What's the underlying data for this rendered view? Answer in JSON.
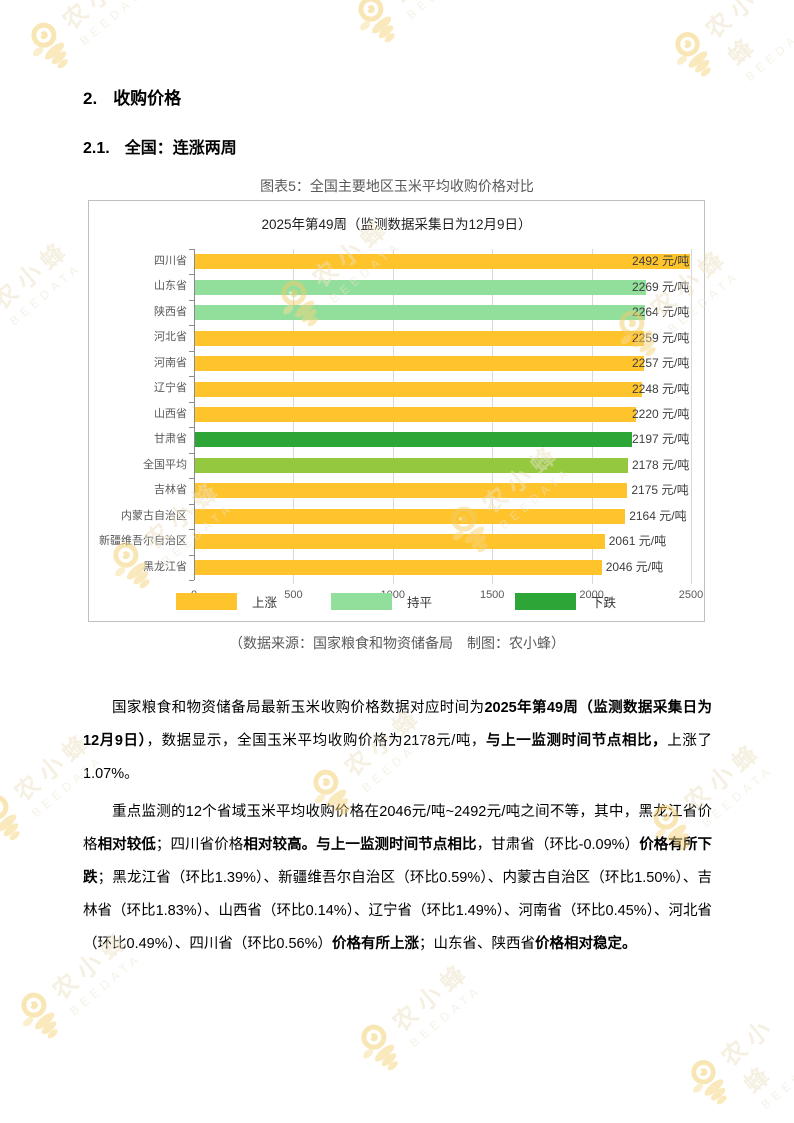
{
  "headings": {
    "h1_number": "2.",
    "h1_title": "收购价格",
    "h2_number": "2.1.",
    "h2_title": "全国：连涨两周"
  },
  "figure": {
    "label": "图表5：全国主要地区玉米平均收购价格对比",
    "caption": "（数据来源：国家粮食和物资储备局　制图：农小蜂）"
  },
  "watermark": {
    "brand_cn": "农小蜂",
    "brand_en": "BEEDATA"
  },
  "chart_data": {
    "type": "bar",
    "orientation": "horizontal",
    "title": "2025年第49周（监测数据采集日为12月9日）",
    "value_unit": "元/吨",
    "xlim": [
      0,
      2500
    ],
    "x_ticks": [
      "0",
      "500",
      "1000",
      "1500",
      "2000",
      "2500"
    ],
    "grid": true,
    "legend_position": "bottom",
    "categories": [
      "四川省",
      "山东省",
      "陕西省",
      "河北省",
      "河南省",
      "辽宁省",
      "山西省",
      "甘肃省",
      "全国平均",
      "吉林省",
      "内蒙古自治区",
      "新疆维吾尔自治区",
      "黑龙江省"
    ],
    "values": [
      2492,
      2269,
      2264,
      2259,
      2257,
      2248,
      2220,
      2197,
      2178,
      2175,
      2164,
      2061,
      2046
    ],
    "statuses": [
      "up",
      "flat",
      "flat",
      "up",
      "up",
      "up",
      "up",
      "down",
      "average",
      "up",
      "up",
      "up",
      "up"
    ],
    "status_colors": {
      "up": "#FFC32C",
      "flat": "#92DE9B",
      "down": "#2DA637",
      "average": "#93C83F"
    },
    "legend": [
      {
        "label": "上涨",
        "status": "up"
      },
      {
        "label": "持平",
        "status": "flat"
      },
      {
        "label": "下跌",
        "status": "down"
      }
    ]
  },
  "paragraphs": [
    {
      "segments": [
        {
          "text": "国家粮食和物资储备局最新玉米收购价格数据对应时间为",
          "bold": false
        },
        {
          "text": "2025年第49周（监测数据采集日为12月9日）",
          "bold": true
        },
        {
          "text": "，数据显示，全国玉米平均收购价格为2178元/吨，",
          "bold": false
        },
        {
          "text": "与上一监测时间节点相比，",
          "bold": true
        },
        {
          "text": "上涨了1.07%。",
          "bold": false
        }
      ]
    },
    {
      "segments": [
        {
          "text": "重点监测的12个省域玉米平均收购价格在2046元/吨~2492元/吨之间不等，其中，黑龙江省价格",
          "bold": false
        },
        {
          "text": "相对较低",
          "bold": true
        },
        {
          "text": "；四川省价格",
          "bold": false
        },
        {
          "text": "相对较高。与上一监测时间节点相比",
          "bold": true
        },
        {
          "text": "，甘肃省（环比-0.09%）",
          "bold": false
        },
        {
          "text": "价格有所下跌",
          "bold": true
        },
        {
          "text": "；黑龙江省（环比1.39%）、新疆维吾尔自治区（环比0.59%）、内蒙古自治区（环比1.50%）、吉林省（环比1.83%）、山西省（环比0.14%）、辽宁省（环比1.49%）、河南省（环比0.45%）、河北省（环比0.49%）、四川省（环比0.56%）",
          "bold": false
        },
        {
          "text": "价格有所上涨",
          "bold": true
        },
        {
          "text": "；山东省、陕西省",
          "bold": false
        },
        {
          "text": "价格相对稳定。",
          "bold": true
        }
      ]
    }
  ]
}
